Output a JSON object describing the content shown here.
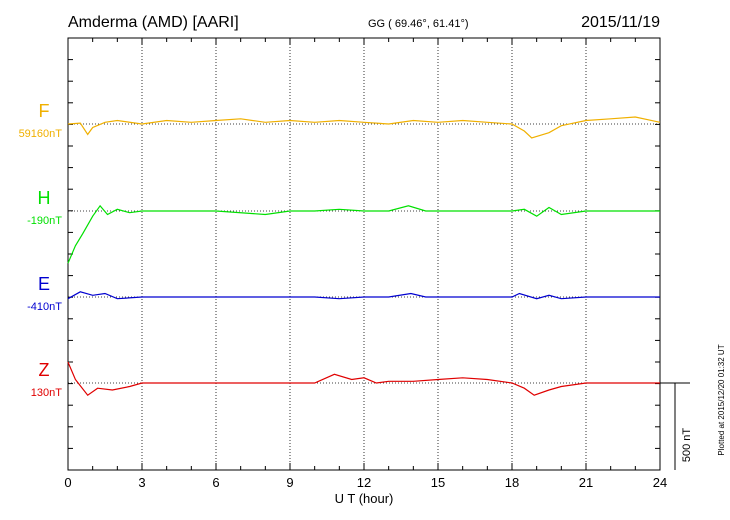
{
  "header": {
    "station": "Amderma (AMD)  [AARI]",
    "coords": "GG ( 69.46°,  61.41°)",
    "date": "2015/11/19"
  },
  "side_note": "Plotted at 2015/12/20 01:32 UT",
  "scale_bar_label": "500 nT",
  "colors": {
    "F": "#f0b000",
    "H": "#00e000",
    "E": "#0000d0",
    "Z": "#e00000"
  },
  "chart_data": {
    "type": "line",
    "title": "Amderma (AMD)  [AARI]",
    "xlabel": "U T (hour)",
    "ylabel": "",
    "xlim": [
      0,
      24
    ],
    "xticks": [
      "0",
      "3",
      "6",
      "9",
      "12",
      "15",
      "18",
      "21",
      "24"
    ],
    "grid": "vertical dotted at 3-hour intervals; dotted baseline per component",
    "scale_nT_per_bar": 500,
    "series": [
      {
        "name": "F",
        "baseline_label": "59160nT",
        "x": [
          0,
          0.5,
          0.8,
          1,
          1.5,
          2,
          3,
          4,
          5,
          6,
          7,
          8,
          9,
          10,
          11,
          12,
          13,
          14,
          15,
          16,
          17,
          18,
          18.5,
          18.8,
          19.5,
          20,
          21,
          22,
          23,
          24
        ],
        "y": [
          0,
          5,
          -60,
          -20,
          10,
          20,
          0,
          20,
          10,
          20,
          30,
          10,
          20,
          10,
          20,
          10,
          0,
          20,
          10,
          20,
          10,
          0,
          -40,
          -80,
          -50,
          -10,
          20,
          30,
          40,
          10
        ]
      },
      {
        "name": "H",
        "baseline_label": "-190nT",
        "x": [
          0,
          0.3,
          0.6,
          1,
          1.3,
          1.6,
          2,
          2.5,
          3,
          4,
          6,
          8,
          9,
          10,
          11,
          12,
          13,
          13.8,
          14.5,
          15,
          17,
          18,
          18.5,
          19,
          19.5,
          20,
          21,
          24
        ],
        "y": [
          -300,
          -200,
          -130,
          -30,
          30,
          -20,
          10,
          -10,
          0,
          0,
          0,
          -20,
          0,
          0,
          10,
          0,
          0,
          30,
          0,
          0,
          0,
          0,
          10,
          -30,
          20,
          -20,
          0,
          0
        ]
      },
      {
        "name": "E",
        "baseline_label": "-410nT",
        "x": [
          0,
          0.5,
          1,
          1.5,
          2,
          3,
          4,
          6,
          8,
          9,
          10,
          11,
          12,
          13,
          13.9,
          14.5,
          15,
          17,
          18,
          18.3,
          19,
          19.5,
          20,
          21,
          24
        ],
        "y": [
          -10,
          30,
          10,
          20,
          -10,
          0,
          0,
          0,
          0,
          0,
          0,
          -10,
          0,
          0,
          20,
          0,
          0,
          0,
          0,
          20,
          -10,
          10,
          -10,
          0,
          0
        ]
      },
      {
        "name": "Z",
        "baseline_label": "130nT",
        "x": [
          0,
          0.3,
          0.8,
          1.2,
          1.8,
          2.5,
          3,
          4,
          6,
          8,
          10,
          10.8,
          11.5,
          12,
          12.5,
          13,
          14,
          15,
          16,
          17,
          18,
          18.5,
          18.9,
          19.5,
          20,
          21,
          24
        ],
        "y": [
          120,
          20,
          -70,
          -30,
          -40,
          -20,
          0,
          0,
          0,
          0,
          0,
          50,
          20,
          30,
          0,
          10,
          10,
          20,
          30,
          20,
          0,
          -30,
          -70,
          -40,
          -20,
          0,
          0
        ]
      }
    ]
  }
}
